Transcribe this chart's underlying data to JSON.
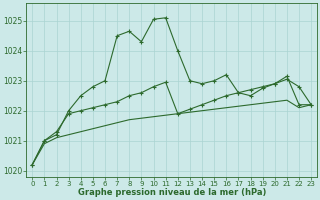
{
  "line1_y": [
    1020.2,
    1021.0,
    1021.2,
    1022.0,
    1022.5,
    1022.8,
    1023.0,
    1024.5,
    1024.65,
    1024.3,
    1025.05,
    1025.1,
    1024.0,
    1023.0,
    1022.9,
    1023.0,
    1023.2,
    1022.6,
    1022.5,
    1022.75,
    1022.9,
    1023.15,
    1022.2,
    1022.2
  ],
  "line2_y": [
    1020.2,
    1021.0,
    1021.3,
    1021.9,
    1022.0,
    1022.1,
    1022.2,
    1022.3,
    1022.5,
    1022.6,
    1022.8,
    1022.95,
    1021.9,
    1022.05,
    1022.2,
    1022.35,
    1022.5,
    1022.6,
    1022.7,
    1022.8,
    1022.9,
    1023.05,
    1022.8,
    1022.2
  ],
  "line3_y": [
    1020.2,
    1020.9,
    1021.1,
    1021.2,
    1021.3,
    1021.4,
    1021.5,
    1021.6,
    1021.7,
    1021.75,
    1021.8,
    1021.85,
    1021.9,
    1021.95,
    1022.0,
    1022.05,
    1022.1,
    1022.15,
    1022.2,
    1022.25,
    1022.3,
    1022.35,
    1022.1,
    1022.2
  ],
  "x": [
    0,
    1,
    2,
    3,
    4,
    5,
    6,
    7,
    8,
    9,
    10,
    11,
    12,
    13,
    14,
    15,
    16,
    17,
    18,
    19,
    20,
    21,
    22,
    23
  ],
  "bg_color": "#cce9e8",
  "grid_color": "#aad4d2",
  "line_color": "#2d6a2d",
  "xlabel": "Graphe pression niveau de la mer (hPa)",
  "ylim": [
    1019.8,
    1025.6
  ],
  "xlim": [
    -0.5,
    23.5
  ],
  "yticks": [
    1020,
    1021,
    1022,
    1023,
    1024,
    1025
  ],
  "xticks": [
    0,
    1,
    2,
    3,
    4,
    5,
    6,
    7,
    8,
    9,
    10,
    11,
    12,
    13,
    14,
    15,
    16,
    17,
    18,
    19,
    20,
    21,
    22,
    23
  ]
}
